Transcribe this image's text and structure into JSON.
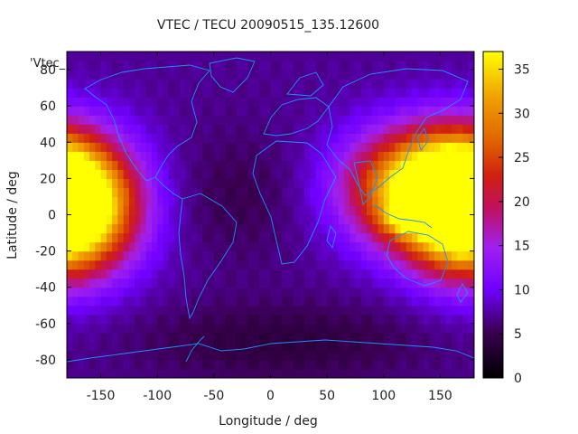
{
  "chart_data": {
    "type": "heatmap",
    "title": "VTEC / TECU 20090515_135.12600",
    "xlabel": "Longitude / deg",
    "ylabel": "Latitude / deg",
    "series_label": "'Vtec_",
    "xlim": [
      -180,
      180
    ],
    "ylim": [
      -90,
      90
    ],
    "x_ticks": [
      -150,
      -100,
      -50,
      0,
      50,
      100,
      150
    ],
    "y_ticks": [
      -80,
      -60,
      -40,
      -20,
      0,
      20,
      40,
      60,
      80
    ],
    "colorbar": {
      "range": [
        0,
        37
      ],
      "ticks": [
        0,
        5,
        10,
        15,
        20,
        25,
        30,
        35
      ]
    },
    "value_field": {
      "grid_lon_step": 5,
      "grid_lat_step": 5,
      "background_tecu": 7,
      "peaks": [
        {
          "lon": 130,
          "lat": 15,
          "value": 27,
          "lon_width": 45,
          "lat_width": 22
        },
        {
          "lon": -170,
          "lat": 5,
          "value": 24,
          "lon_width": 40,
          "lat_width": 25
        },
        {
          "lon": 170,
          "lat": 5,
          "value": 22,
          "lon_width": 35,
          "lat_width": 25
        },
        {
          "lon": 120,
          "lat": -2,
          "value": 10,
          "lon_width": 14,
          "lat_width": 5
        }
      ],
      "troughs": [
        {
          "lon": 10,
          "lat": -70,
          "value": -3,
          "lon_width": 90,
          "lat_width": 15
        },
        {
          "lon": -30,
          "lat": 10,
          "value": -2,
          "lon_width": 45,
          "lat_width": 25
        }
      ]
    },
    "coastline_color": "#1e90ff",
    "grid": false
  }
}
